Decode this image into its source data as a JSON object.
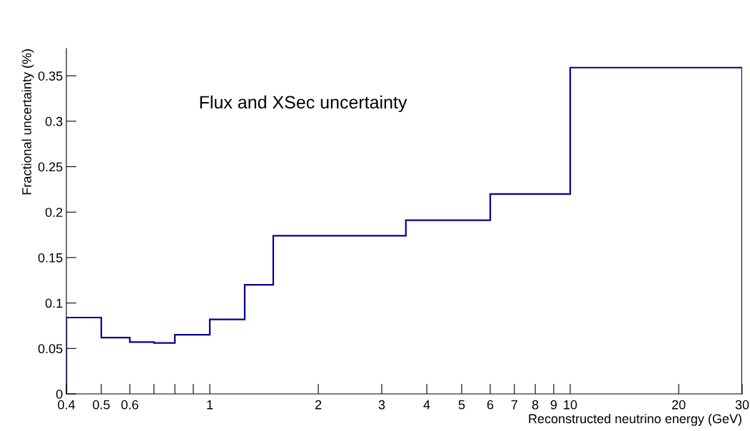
{
  "chart_data": {
    "type": "histogram",
    "bins": [
      0.4,
      0.5,
      0.6,
      0.7,
      0.8,
      1.0,
      1.25,
      1.5,
      3.5,
      6,
      10,
      30
    ],
    "values": [
      0.084,
      0.062,
      0.057,
      0.056,
      0.065,
      0.082,
      0.12,
      0.174,
      0.191,
      0.22,
      0.359
    ],
    "color": "#000099",
    "xlabel": "Reconstructed neutrino energy (GeV)",
    "ylabel": "Fractional uncertainty (%)",
    "annotations": [
      "Flux and XSec uncertainty"
    ],
    "log": "x",
    "xlim": [
      0.4,
      30
    ],
    "xticks": [
      0.4,
      0.5,
      0.6,
      {
        "value": 0.7,
        "label": null
      },
      {
        "value": 0.8,
        "label": null
      },
      {
        "value": 0.9,
        "label": null
      },
      1,
      2,
      3,
      4,
      5,
      6,
      7,
      8,
      9,
      10,
      20,
      30
    ],
    "ylim": [
      0,
      0.38
    ],
    "yticks": [
      0,
      0.05,
      0.1,
      0.15,
      0.2,
      0.25,
      0.3,
      0.35
    ],
    "grid": false
  }
}
